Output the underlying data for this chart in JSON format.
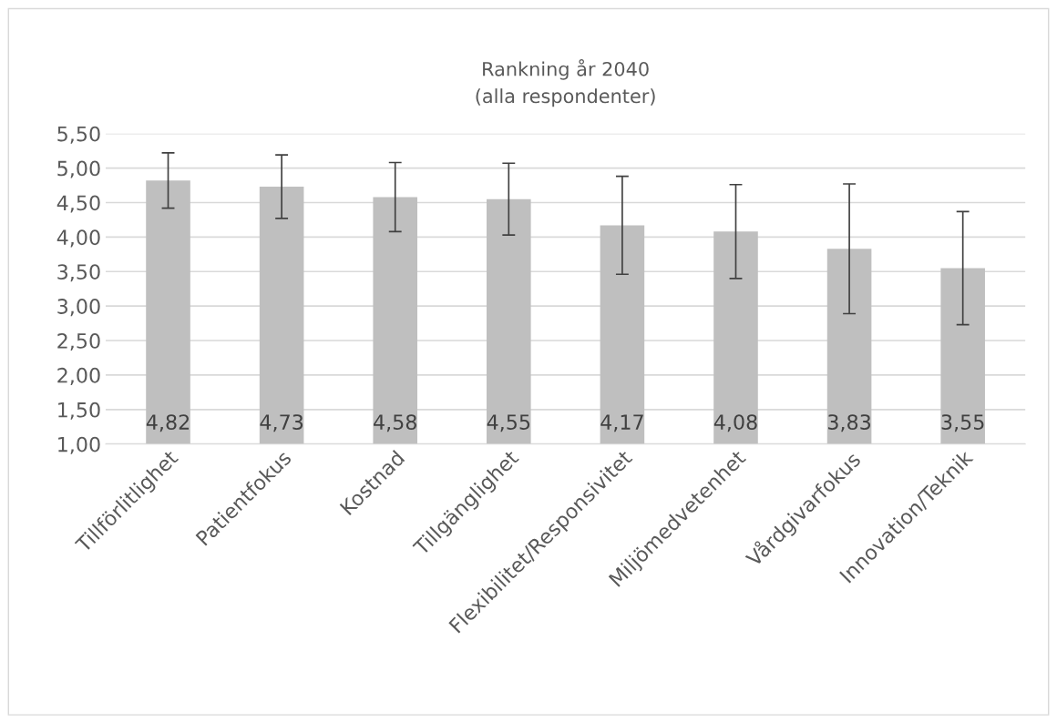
{
  "chart_data": {
    "type": "bar",
    "title": "Rankning år 2040\n(alla respondenter)",
    "categories": [
      "Tillförlitlighet",
      "Patientfokus",
      "Kostnad",
      "Tillgänglighet",
      "Flexibilitet/Responsivitet",
      "Miljömedvetenhet",
      "Vårdgivarfokus",
      "Innovation/Teknik"
    ],
    "values": [
      4.82,
      4.73,
      4.58,
      4.55,
      4.17,
      4.08,
      3.83,
      3.55
    ],
    "errors": [
      0.4,
      0.46,
      0.5,
      0.52,
      0.71,
      0.68,
      0.94,
      0.82
    ],
    "value_labels": [
      "4,82",
      "4,73",
      "4,58",
      "4,55",
      "4,17",
      "4,08",
      "3,83",
      "3,55"
    ],
    "color": "#bfbfbf",
    "ylim": [
      1.0,
      5.5
    ],
    "yticks": [
      {
        "value": 1.0,
        "label": "1,00"
      },
      {
        "value": 1.5,
        "label": "1,50"
      },
      {
        "value": 2.0,
        "label": "2,00"
      },
      {
        "value": 2.5,
        "label": "2,50"
      },
      {
        "value": 3.0,
        "label": "3,00"
      },
      {
        "value": 3.5,
        "label": "3,50"
      },
      {
        "value": 4.0,
        "label": "4,00"
      },
      {
        "value": 4.5,
        "label": "4,50"
      },
      {
        "value": 5.0,
        "label": "5,00"
      },
      {
        "value": 5.5,
        "label": "5,50"
      }
    ],
    "grid": "y"
  }
}
